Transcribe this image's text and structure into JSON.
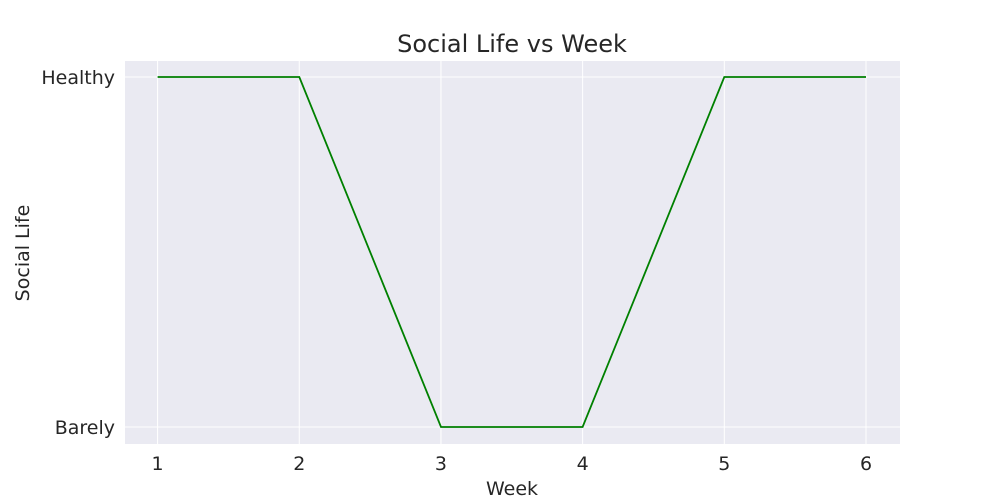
{
  "chart_data": {
    "type": "line",
    "title": "Social Life vs Week",
    "xlabel": "Week",
    "ylabel": "Social Life",
    "x": [
      1,
      2,
      3,
      4,
      5,
      6
    ],
    "categories_y": [
      "Barely",
      "Healthy"
    ],
    "series": [
      {
        "values": [
          "Healthy",
          "Healthy",
          "Barely",
          "Barely",
          "Healthy",
          "Healthy"
        ],
        "color": "#008000"
      }
    ],
    "x_ticks": [
      "1",
      "2",
      "3",
      "4",
      "5",
      "6"
    ],
    "y_ticks": [
      "Barely",
      "Healthy"
    ],
    "xlim": [
      0.77,
      6.24
    ],
    "grid": true,
    "style": {
      "background": "#eaeaf2",
      "grid_color": "#ffffff"
    }
  }
}
